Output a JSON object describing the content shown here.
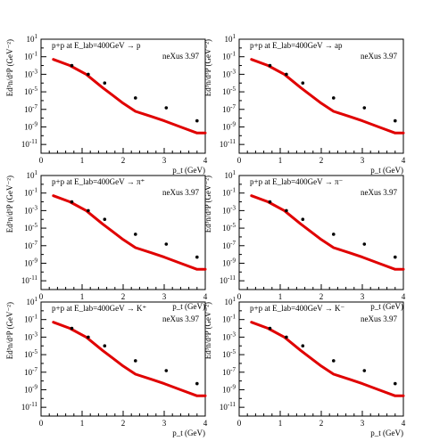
{
  "colors": {
    "curve": "#e00000",
    "points": "#000000",
    "frame": "#000000",
    "background": "#ffffff"
  },
  "chart_data": [
    {
      "type": "line",
      "title": "p+p at E_lab=400GeV → p",
      "annotation": "neXus 3.97",
      "xlabel": "p_t (GeV)",
      "ylabel": "Ed³n/d³P (GeV⁻²)",
      "xlim": [
        0,
        4
      ],
      "ylim": [
        1e-12,
        10
      ],
      "log_y": true,
      "x_ticks": [
        0,
        1,
        2,
        3,
        4
      ],
      "y_tick_exponents": [
        1,
        -1,
        -3,
        -5,
        -7,
        -9,
        -11
      ],
      "series": [
        {
          "style": "line",
          "x": [
            0.3,
            0.7,
            1.1,
            1.5,
            2.0,
            2.3,
            2.7,
            3.0,
            3.4,
            3.8,
            4.0
          ],
          "y": [
            0.05,
            0.01,
            0.001,
            3e-05,
            5e-07,
            6e-08,
            1.5e-08,
            5e-09,
            1e-09,
            2e-10,
            2e-10
          ]
        },
        {
          "style": "points",
          "x": [
            0.75,
            1.15,
            1.55,
            2.3,
            3.05,
            3.8
          ],
          "y": [
            0.01,
            0.001,
            0.0001,
            2e-06,
            1.5e-07,
            5e-09
          ]
        }
      ]
    },
    {
      "type": "line",
      "title": "p+p at E_lab=400GeV → ap",
      "annotation": "neXus 3.97",
      "xlabel": "p_t (GeV)",
      "ylabel": "Ed³n/d³P (GeV⁻²)",
      "xlim": [
        0,
        4
      ],
      "ylim": [
        1e-12,
        10
      ],
      "log_y": true,
      "x_ticks": [
        0,
        1,
        2,
        3,
        4
      ],
      "y_tick_exponents": [
        1,
        -1,
        -3,
        -5,
        -7,
        -9,
        -11
      ],
      "series": [
        {
          "style": "line",
          "x": [
            0.3,
            0.7,
            1.1,
            1.5,
            2.0,
            2.3,
            2.7,
            3.0,
            3.4,
            3.8,
            4.0
          ],
          "y": [
            0.05,
            0.01,
            0.001,
            3e-05,
            5e-07,
            6e-08,
            1.5e-08,
            5e-09,
            1e-09,
            2e-10,
            2e-10
          ]
        },
        {
          "style": "points",
          "x": [
            0.75,
            1.15,
            1.55,
            2.3,
            3.05,
            3.8
          ],
          "y": [
            0.01,
            0.001,
            0.0001,
            2e-06,
            1.5e-07,
            5e-09
          ]
        }
      ]
    },
    {
      "type": "line",
      "title": "p+p at E_lab=400GeV → π⁺",
      "annotation": "neXus 3.97",
      "xlabel": "p_t (GeV)",
      "ylabel": "Ed³n/d³P (GeV⁻²)",
      "xlim": [
        0,
        4
      ],
      "ylim": [
        1e-12,
        10
      ],
      "log_y": true,
      "x_ticks": [
        0,
        1,
        2,
        3,
        4
      ],
      "y_tick_exponents": [
        1,
        -1,
        -3,
        -5,
        -7,
        -9,
        -11
      ],
      "series": [
        {
          "style": "line",
          "x": [
            0.3,
            0.7,
            1.1,
            1.5,
            2.0,
            2.3,
            2.7,
            3.0,
            3.4,
            3.8,
            4.0
          ],
          "y": [
            0.05,
            0.01,
            0.001,
            3e-05,
            5e-07,
            6e-08,
            1.5e-08,
            5e-09,
            1e-09,
            2e-10,
            2e-10
          ]
        },
        {
          "style": "points",
          "x": [
            0.75,
            1.15,
            1.55,
            2.3,
            3.05,
            3.8
          ],
          "y": [
            0.01,
            0.001,
            0.0001,
            2e-06,
            1.5e-07,
            5e-09
          ]
        }
      ]
    },
    {
      "type": "line",
      "title": "p+p at E_lab=400GeV → π⁻",
      "annotation": "neXus 3.97",
      "xlabel": "p_t (GeV)",
      "ylabel": "Ed³n/d³P (GeV⁻²)",
      "xlim": [
        0,
        4
      ],
      "ylim": [
        1e-12,
        10
      ],
      "log_y": true,
      "x_ticks": [
        0,
        1,
        2,
        3,
        4
      ],
      "y_tick_exponents": [
        1,
        -1,
        -3,
        -5,
        -7,
        -9,
        -11
      ],
      "series": [
        {
          "style": "line",
          "x": [
            0.3,
            0.7,
            1.1,
            1.5,
            2.0,
            2.3,
            2.7,
            3.0,
            3.4,
            3.8,
            4.0
          ],
          "y": [
            0.05,
            0.01,
            0.001,
            3e-05,
            5e-07,
            6e-08,
            1.5e-08,
            5e-09,
            1e-09,
            2e-10,
            2e-10
          ]
        },
        {
          "style": "points",
          "x": [
            0.75,
            1.15,
            1.55,
            2.3,
            3.05,
            3.8
          ],
          "y": [
            0.01,
            0.001,
            0.0001,
            2e-06,
            1.5e-07,
            5e-09
          ]
        }
      ]
    },
    {
      "type": "line",
      "title": "p+p at E_lab=400GeV → K⁺",
      "annotation": "neXus 3.97",
      "xlabel": "p_t (GeV)",
      "ylabel": "Ed³n/d³P (GeV⁻²)",
      "xlim": [
        0,
        4
      ],
      "ylim": [
        1e-12,
        10
      ],
      "log_y": true,
      "x_ticks": [
        0,
        1,
        2,
        3,
        4
      ],
      "y_tick_exponents": [
        1,
        -1,
        -3,
        -5,
        -7,
        -9,
        -11
      ],
      "series": [
        {
          "style": "line",
          "x": [
            0.3,
            0.7,
            1.1,
            1.5,
            2.0,
            2.3,
            2.7,
            3.0,
            3.4,
            3.8,
            4.0
          ],
          "y": [
            0.05,
            0.01,
            0.001,
            3e-05,
            5e-07,
            6e-08,
            1.5e-08,
            5e-09,
            1e-09,
            2e-10,
            2e-10
          ]
        },
        {
          "style": "points",
          "x": [
            0.75,
            1.15,
            1.55,
            2.3,
            3.05,
            3.8
          ],
          "y": [
            0.01,
            0.001,
            0.0001,
            2e-06,
            1.5e-07,
            5e-09
          ]
        }
      ]
    },
    {
      "type": "line",
      "title": "p+p at E_lab=400GeV → K⁻",
      "annotation": "neXus 3.97",
      "xlabel": "p_t (GeV)",
      "ylabel": "Ed³n/d³P (GeV⁻²)",
      "xlim": [
        0,
        4
      ],
      "ylim": [
        1e-12,
        10
      ],
      "log_y": true,
      "x_ticks": [
        0,
        1,
        2,
        3,
        4
      ],
      "y_tick_exponents": [
        1,
        -1,
        -3,
        -5,
        -7,
        -9,
        -11
      ],
      "series": [
        {
          "style": "line",
          "x": [
            0.3,
            0.7,
            1.1,
            1.5,
            2.0,
            2.3,
            2.7,
            3.0,
            3.4,
            3.8,
            4.0
          ],
          "y": [
            0.05,
            0.01,
            0.001,
            3e-05,
            5e-07,
            6e-08,
            1.5e-08,
            5e-09,
            1e-09,
            2e-10,
            2e-10
          ]
        },
        {
          "style": "points",
          "x": [
            0.75,
            1.15,
            1.55,
            2.3,
            3.05,
            3.8
          ],
          "y": [
            0.01,
            0.001,
            0.0001,
            2e-06,
            1.5e-07,
            5e-09
          ]
        }
      ]
    }
  ]
}
